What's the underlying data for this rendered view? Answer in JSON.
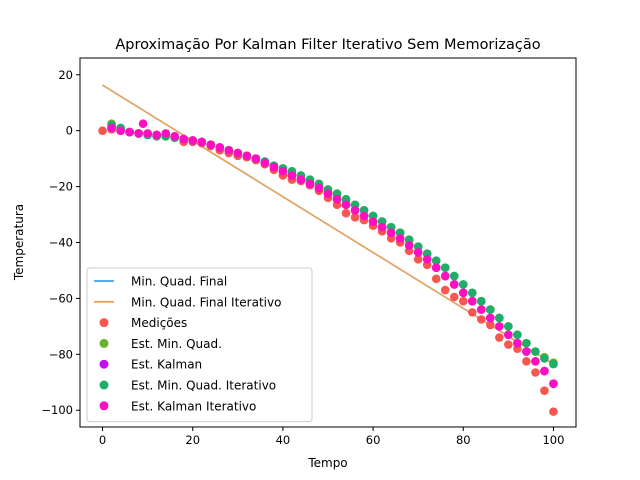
{
  "chart_data": {
    "type": "scatter",
    "title": "Aproximação Por Kalman Filter Iterativo Sem Memorização",
    "xlabel": "Tempo",
    "ylabel": "Temperatura",
    "xlim": [
      -5,
      105
    ],
    "ylim": [
      -106,
      26
    ],
    "xticks": [
      0,
      20,
      40,
      60,
      80,
      100
    ],
    "yticks": [
      20,
      0,
      -20,
      -40,
      -60,
      -80,
      -100
    ],
    "grid": false,
    "legend_position": "lower-left",
    "colors": {
      "min_quad_final": "#3ba3ec",
      "min_quad_final_iterativo": "#f0a150",
      "medicoes": "#f7574f",
      "est_min_quad": "#6ab228",
      "est_kalman": "#c40df0",
      "est_min_quad_iterativo": "#1fad6a",
      "est_kalman_iterativo": "#fc0fc0"
    },
    "lines": [
      {
        "name": "Min. Quad. Final",
        "color_key": "min_quad_final",
        "x": [
          0,
          100
        ],
        "y": [
          16.3,
          -83.5
        ]
      },
      {
        "name": "Min. Quad. Final Iterativo",
        "color_key": "min_quad_final_iterativo",
        "x": [
          0,
          100
        ],
        "y": [
          16.3,
          -83.5
        ]
      }
    ],
    "scatter_series": [
      {
        "name": "Medições",
        "color_key": "medicoes",
        "x": [
          0,
          2,
          4,
          6,
          8,
          10,
          12,
          14,
          16,
          18,
          20,
          22,
          24,
          26,
          28,
          30,
          32,
          34,
          36,
          38,
          40,
          42,
          44,
          46,
          48,
          50,
          52,
          54,
          56,
          58,
          60,
          62,
          64,
          66,
          68,
          70,
          72,
          74,
          76,
          78,
          80,
          82,
          84,
          86,
          88,
          90,
          92,
          94,
          96,
          98,
          100
        ],
        "y": [
          0.0,
          0.5,
          0.5,
          -0.5,
          -1.0,
          -1.5,
          -1.5,
          -1.5,
          -2.5,
          -4.0,
          -4.0,
          -4.5,
          -5.5,
          -7.0,
          -8.0,
          -9.0,
          -9.5,
          -10.5,
          -12.0,
          -14.0,
          -16.0,
          -17.5,
          -18.0,
          -19.5,
          -21.5,
          -24.0,
          -26.5,
          -29.5,
          -31.0,
          -32.0,
          -34.0,
          -36.0,
          -38.5,
          -40.0,
          -43.0,
          -46.0,
          -48.0,
          -53.0,
          -57.0,
          -59.5,
          -61.0,
          -65.0,
          -67.5,
          -69.5,
          -74.0,
          -76.5,
          -78.0,
          -82.5,
          -86.5,
          -93.0,
          -100.5
        ]
      },
      {
        "name": "Est. Min. Quad.",
        "color_key": "est_min_quad",
        "x": [
          2,
          4,
          6,
          8,
          10,
          12,
          14,
          16,
          18,
          20,
          22,
          24,
          26,
          28,
          30,
          32,
          34,
          36,
          38,
          40,
          42,
          44,
          46,
          48,
          50,
          52,
          54,
          56,
          58,
          60,
          62,
          64,
          66,
          68,
          70,
          72,
          74,
          76,
          78,
          80,
          82,
          84,
          86,
          88,
          90,
          92,
          94,
          96,
          98,
          100
        ],
        "y": [
          2.5,
          1.0,
          -0.5,
          -1.0,
          -1.5,
          -2.0,
          -2.0,
          -2.5,
          -3.0,
          -3.5,
          -4.0,
          -5.0,
          -6.0,
          -7.0,
          -8.0,
          -9.0,
          -10.0,
          -11.5,
          -12.5,
          -13.5,
          -15.0,
          -16.5,
          -18.0,
          -19.5,
          -21.5,
          -23.0,
          -25.0,
          -26.5,
          -28.5,
          -30.5,
          -32.5,
          -34.5,
          -36.5,
          -39.0,
          -41.5,
          -44.0,
          -46.5,
          -49.0,
          -52.0,
          -55.0,
          -58.0,
          -61.0,
          -64.0,
          -67.0,
          -70.0,
          -73.0,
          -76.0,
          -79.0,
          -81.0,
          -83.0
        ]
      },
      {
        "name": "Est. Kalman",
        "color_key": "est_kalman",
        "x": [
          2,
          4,
          6,
          8,
          10,
          12,
          14,
          16,
          18,
          20,
          22,
          24,
          26,
          28,
          30,
          32,
          34,
          36,
          38,
          40,
          42,
          44,
          46,
          48,
          50,
          52,
          54,
          56,
          58,
          60,
          62,
          64,
          66,
          68,
          70,
          72,
          74,
          76,
          78,
          80,
          82,
          84,
          86,
          88,
          90,
          92,
          94,
          96,
          98,
          100
        ],
        "y": [
          1.0,
          0.0,
          -0.5,
          -1.0,
          -1.5,
          -1.5,
          -1.5,
          -2.0,
          -3.0,
          -3.5,
          -4.0,
          -5.0,
          -6.0,
          -7.0,
          -8.0,
          -9.0,
          -10.0,
          -11.5,
          -13.0,
          -14.5,
          -16.0,
          -17.5,
          -19.0,
          -20.5,
          -22.5,
          -24.5,
          -26.5,
          -28.5,
          -30.5,
          -32.5,
          -34.5,
          -36.5,
          -38.5,
          -41.0,
          -43.5,
          -46.0,
          -49.0,
          -52.0,
          -55.0,
          -58.0,
          -61.0,
          -64.0,
          -67.0,
          -70.0,
          -73.0,
          -76.0,
          -79.0,
          -82.5,
          -86.0,
          -90.5
        ]
      },
      {
        "name": "Est. Min. Quad. Iterativo",
        "color_key": "est_min_quad_iterativo",
        "x": [
          2,
          4,
          6,
          8,
          10,
          12,
          14,
          16,
          18,
          20,
          22,
          24,
          26,
          28,
          30,
          32,
          34,
          36,
          38,
          40,
          42,
          44,
          46,
          48,
          50,
          52,
          54,
          56,
          58,
          60,
          62,
          64,
          66,
          68,
          70,
          72,
          74,
          76,
          78,
          80,
          82,
          84,
          86,
          88,
          90,
          92,
          94,
          96,
          98,
          100
        ],
        "y": [
          2.0,
          1.0,
          -0.5,
          -1.0,
          -1.5,
          -2.0,
          -2.0,
          -2.5,
          -3.0,
          -3.5,
          -4.0,
          -5.0,
          -6.0,
          -7.0,
          -8.0,
          -9.0,
          -10.0,
          -11.0,
          -12.5,
          -13.5,
          -14.5,
          -16.0,
          -17.5,
          -19.0,
          -21.0,
          -22.5,
          -24.5,
          -26.5,
          -28.5,
          -30.5,
          -32.5,
          -34.5,
          -36.5,
          -39.0,
          -41.5,
          -44.0,
          -46.5,
          -49.0,
          -52.0,
          -55.0,
          -58.0,
          -61.0,
          -64.0,
          -67.0,
          -70.0,
          -73.0,
          -76.0,
          -79.0,
          -81.5,
          -83.5
        ]
      },
      {
        "name": "Est. Kalman Iterativo",
        "color_key": "est_kalman_iterativo",
        "x": [
          2,
          4,
          6,
          8,
          9,
          10,
          12,
          14,
          16,
          18,
          20,
          22,
          24,
          26,
          28,
          30,
          32,
          34,
          36,
          38,
          40,
          42,
          44,
          46,
          48,
          50,
          52,
          54,
          56,
          58,
          60,
          62,
          64,
          66,
          68,
          70,
          72,
          74,
          76,
          78,
          80,
          82,
          84,
          86,
          88,
          90,
          92,
          94,
          96,
          98,
          100
        ],
        "y": [
          1.0,
          0.0,
          -0.5,
          -1.0,
          2.5,
          -1.0,
          -1.5,
          -1.0,
          -2.0,
          -3.0,
          -3.5,
          -4.0,
          -5.0,
          -6.0,
          -7.0,
          -8.0,
          -9.0,
          -10.0,
          -11.5,
          -13.0,
          -14.5,
          -16.0,
          -17.5,
          -19.0,
          -20.5,
          -22.5,
          -24.5,
          -26.5,
          -28.5,
          -30.5,
          -32.5,
          -34.5,
          -36.5,
          -38.5,
          -41.0,
          -43.5,
          -46.0,
          -49.0,
          -52.0,
          -55.0,
          -58.0,
          -61.0,
          -64.0,
          -67.0,
          -70.0,
          -73.0,
          -76.0,
          -79.0,
          -82.5,
          -86.0,
          -90.5
        ]
      }
    ]
  }
}
